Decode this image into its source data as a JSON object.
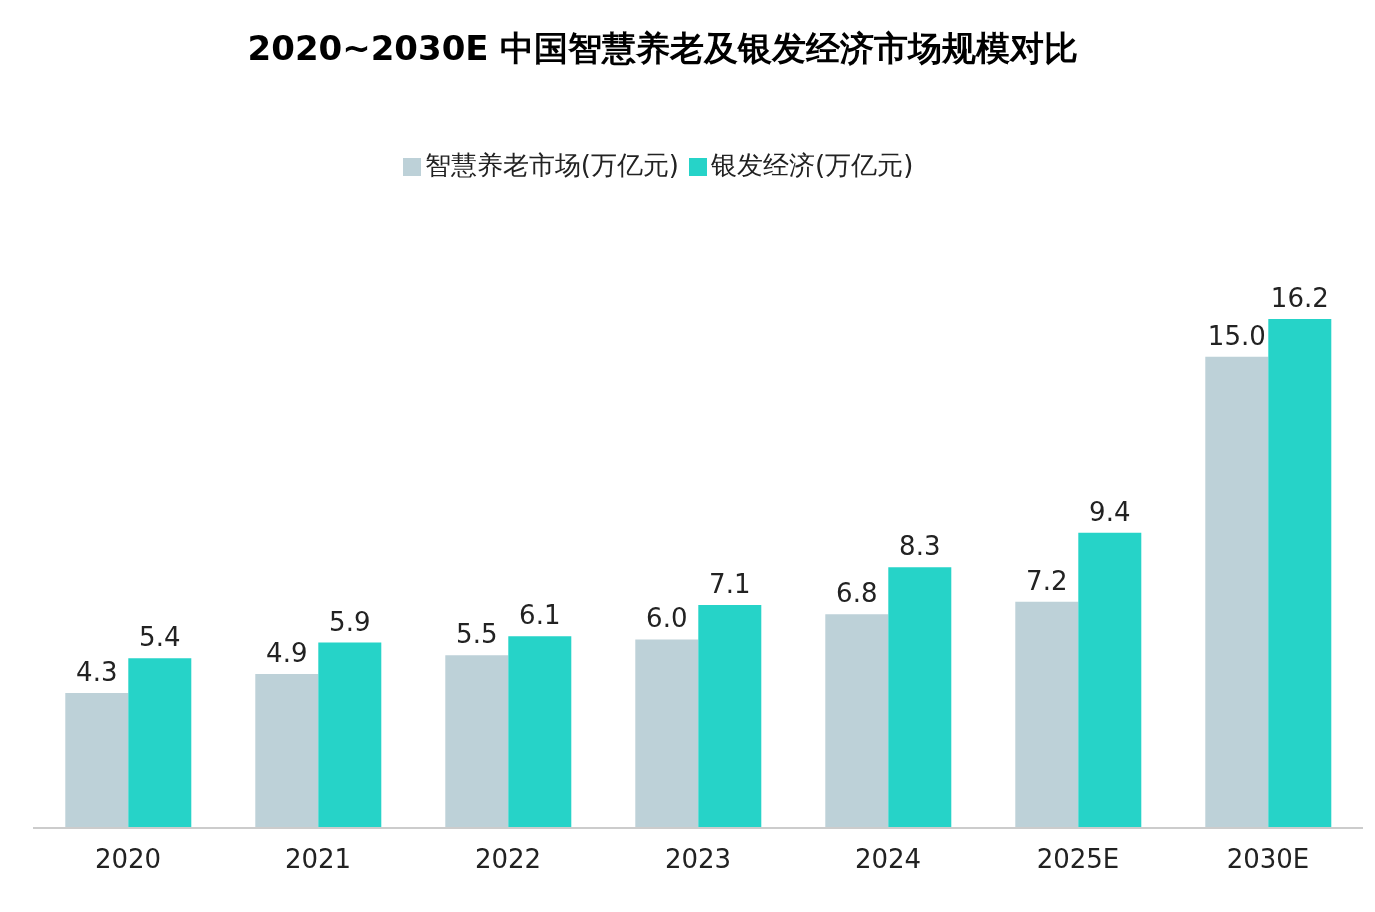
{
  "chart_data": {
    "type": "bar",
    "title": "2020~2030E 中国智慧养老及银发经济市场规模对比",
    "categories": [
      "2020",
      "2021",
      "2022",
      "2023",
      "2024",
      "2025E",
      "2030E"
    ],
    "series": [
      {
        "name": "智慧养老市场(万亿元)",
        "color": "#bdd1d8",
        "values": [
          4.3,
          4.9,
          5.5,
          6.0,
          6.8,
          7.2,
          15.0
        ],
        "value_labels": [
          "4.3",
          "4.9",
          "5.5",
          "6.0",
          "6.8",
          "7.2",
          "15.0"
        ]
      },
      {
        "name": "银发经济(万亿元)",
        "color": "#26d3c8",
        "values": [
          5.4,
          5.9,
          6.1,
          7.1,
          8.3,
          9.4,
          16.2
        ],
        "value_labels": [
          "5.4",
          "5.9",
          "6.1",
          "7.1",
          "8.3",
          "9.4",
          "16.2"
        ]
      }
    ],
    "legend": "top",
    "grid": false
  }
}
